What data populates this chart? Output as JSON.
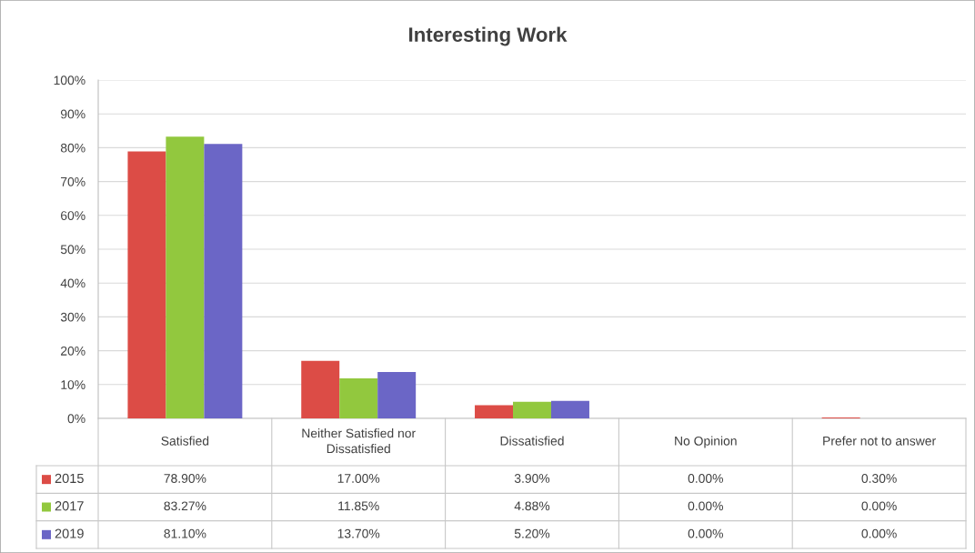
{
  "chart_data": {
    "type": "bar",
    "title": "Interesting Work",
    "categories": [
      "Satisfied",
      "Neither Satisfied nor\nDissatisfied",
      "Dissatisfied",
      "No Opinion",
      "Prefer not to answer"
    ],
    "series": [
      {
        "name": "2015",
        "color": "#dc4c46",
        "values": [
          78.9,
          17.0,
          3.9,
          0.0,
          0.3
        ],
        "value_labels": [
          "78.90%",
          "17.00%",
          "3.90%",
          "0.00%",
          "0.30%"
        ]
      },
      {
        "name": "2017",
        "color": "#92c83e",
        "values": [
          83.27,
          11.85,
          4.88,
          0.0,
          0.0
        ],
        "value_labels": [
          "83.27%",
          "11.85%",
          "4.88%",
          "0.00%",
          "0.00%"
        ]
      },
      {
        "name": "2019",
        "color": "#6b66c6",
        "values": [
          81.1,
          13.7,
          5.2,
          0.0,
          0.0
        ],
        "value_labels": [
          "81.10%",
          "13.70%",
          "5.20%",
          "0.00%",
          "0.00%"
        ]
      }
    ],
    "ylim": [
      0,
      100
    ],
    "yticks": [
      {
        "value": 0,
        "label": "0%"
      },
      {
        "value": 10,
        "label": "10%"
      },
      {
        "value": 20,
        "label": "20%"
      },
      {
        "value": 30,
        "label": "30%"
      },
      {
        "value": 40,
        "label": "40%"
      },
      {
        "value": 50,
        "label": "50%"
      },
      {
        "value": 60,
        "label": "60%"
      },
      {
        "value": 70,
        "label": "70%"
      },
      {
        "value": 80,
        "label": "80%"
      },
      {
        "value": 90,
        "label": "90%"
      },
      {
        "value": 100,
        "label": "100%"
      }
    ],
    "grid": "y",
    "legend": "bottom left"
  }
}
